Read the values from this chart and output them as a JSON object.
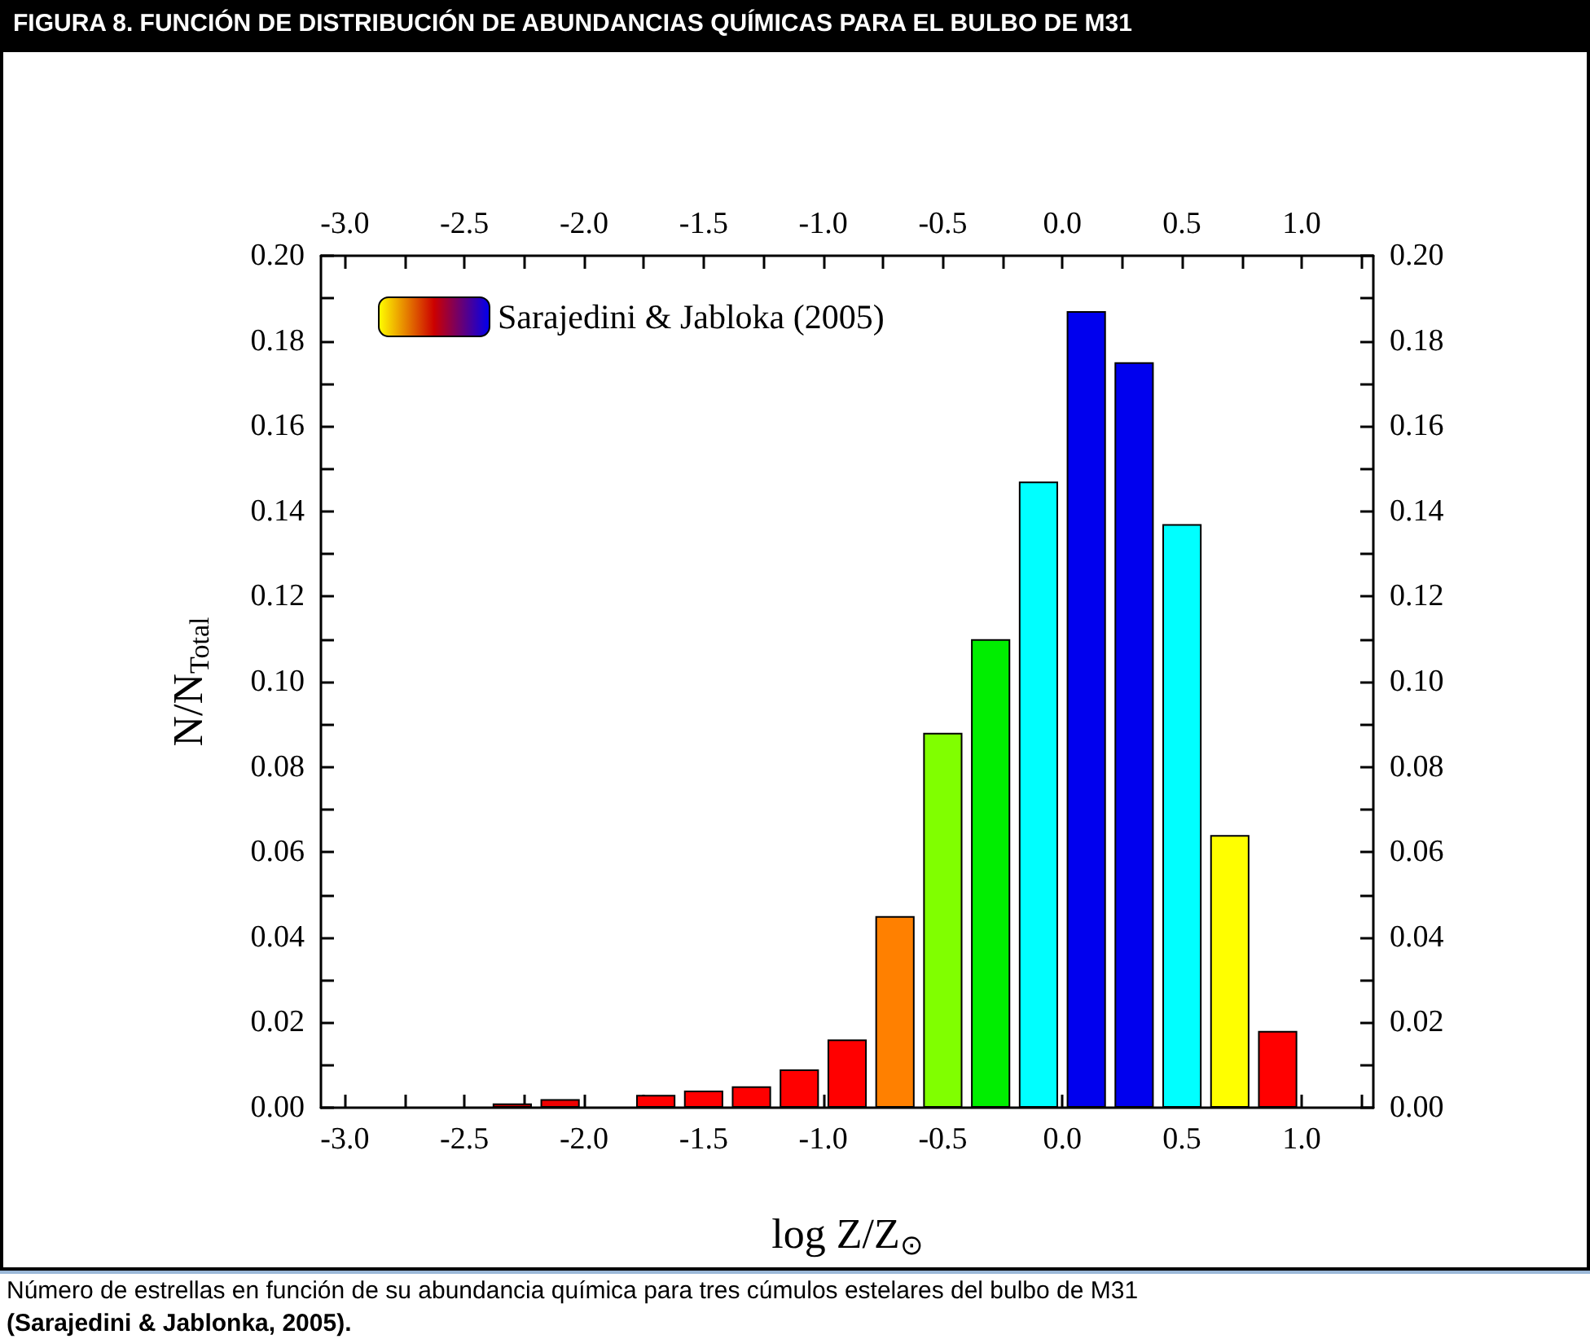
{
  "chart_data": {
    "type": "bar",
    "title": "FIGURA 8. FUNCIÓN DE DISTRIBUCIÓN DE ABUNDANCIAS QUÍMICAS PARA EL BULBO DE M31",
    "xlabel": "log Z/Z$_{⊙}$",
    "ylabel": "N/N$_{Total}$",
    "annotations": [
      "Número de estrellas en función de su abundancia química para tres cúmulos estelares del bulbo de M31",
      "(Sarajedini & Jablonka, 2005)."
    ],
    "x": [
      -2.3,
      -2.1,
      -1.7,
      -1.5,
      -1.3,
      -1.1,
      -0.9,
      -0.7,
      -0.5,
      -0.3,
      -0.1,
      0.1,
      0.3,
      0.5,
      0.7,
      0.9
    ],
    "series": [
      {
        "name": "Sarajedini & Jabloka (2005)",
        "values": [
          0.001,
          0.002,
          0.003,
          0.004,
          0.005,
          0.009,
          0.016,
          0.045,
          0.088,
          0.11,
          0.147,
          0.187,
          0.175,
          0.137,
          0.064,
          0.018
        ],
        "colors": [
          "#cc0000",
          "#ee0000",
          "#ff0000",
          "#ff0000",
          "#ff0000",
          "#ff0000",
          "#ff0000",
          "#ff8000",
          "#80ff00",
          "#00ee00",
          "#00ffff",
          "#0000ee",
          "#0000ee",
          "#00ffff",
          "#ffff00",
          "#ff0000"
        ]
      }
    ],
    "xlim": [
      -3.1,
      1.3
    ],
    "xticks": [
      {
        "value": -3.0,
        "label": "-3.0"
      },
      {
        "value": -2.75,
        "label": null
      },
      {
        "value": -2.5,
        "label": "-2.5"
      },
      {
        "value": -2.25,
        "label": null
      },
      {
        "value": -2.0,
        "label": "-2.0"
      },
      {
        "value": -1.75,
        "label": null
      },
      {
        "value": -1.5,
        "label": "-1.5"
      },
      {
        "value": -1.25,
        "label": null
      },
      {
        "value": -1.0,
        "label": "-1.0"
      },
      {
        "value": -0.75,
        "label": null
      },
      {
        "value": -0.5,
        "label": "-0.5"
      },
      {
        "value": -0.25,
        "label": null
      },
      {
        "value": 0,
        "label": "0.0"
      },
      {
        "value": 0.25,
        "label": null
      },
      {
        "value": 0.5,
        "label": "0.5"
      },
      {
        "value": 0.75,
        "label": null
      },
      {
        "value": 1.0,
        "label": "1.0"
      },
      {
        "value": 1.25,
        "label": null
      }
    ],
    "x2lim": [
      -3.1,
      1.3
    ],
    "x2ticks": [
      {
        "value": -3.0,
        "label": "-3.0"
      },
      {
        "value": -2.75,
        "label": null
      },
      {
        "value": -2.5,
        "label": "-2.5"
      },
      {
        "value": -2.25,
        "label": null
      },
      {
        "value": -2.0,
        "label": "-2.0"
      },
      {
        "value": -1.75,
        "label": null
      },
      {
        "value": -1.5,
        "label": "-1.5"
      },
      {
        "value": -1.25,
        "label": null
      },
      {
        "value": -1.0,
        "label": "-1.0"
      },
      {
        "value": -0.75,
        "label": null
      },
      {
        "value": -0.5,
        "label": "-0.5"
      },
      {
        "value": -0.25,
        "label": null
      },
      {
        "value": 0,
        "label": "0.0"
      },
      {
        "value": 0.25,
        "label": null
      },
      {
        "value": 0.5,
        "label": "0.5"
      },
      {
        "value": 0.75,
        "label": null
      },
      {
        "value": 1.0,
        "label": "1.0"
      },
      {
        "value": 1.25,
        "label": null
      }
    ],
    "ylim": [
      0,
      0.2
    ],
    "yticks": [
      {
        "value": 0,
        "label": "0.00"
      },
      {
        "value": 0.01,
        "label": null
      },
      {
        "value": 0.02,
        "label": "0.02"
      },
      {
        "value": 0.03,
        "label": null
      },
      {
        "value": 0.04,
        "label": "0.04"
      },
      {
        "value": 0.05,
        "label": null
      },
      {
        "value": 0.06,
        "label": "0.06"
      },
      {
        "value": 0.07,
        "label": null
      },
      {
        "value": 0.08,
        "label": "0.08"
      },
      {
        "value": 0.09,
        "label": null
      },
      {
        "value": 0.1,
        "label": "0.10"
      },
      {
        "value": 0.11,
        "label": null
      },
      {
        "value": 0.12,
        "label": "0.12"
      },
      {
        "value": 0.13,
        "label": null
      },
      {
        "value": 0.14,
        "label": "0.14"
      },
      {
        "value": 0.15,
        "label": null
      },
      {
        "value": 0.16,
        "label": "0.16"
      },
      {
        "value": 0.17,
        "label": null
      },
      {
        "value": 0.18,
        "label": "0.18"
      },
      {
        "value": 0.19,
        "label": null
      },
      {
        "value": 0.2,
        "label": "0.20"
      }
    ],
    "y2lim": [
      0,
      0.2
    ],
    "y2ticks": [
      {
        "value": 0,
        "label": "0.00"
      },
      {
        "value": 0.01,
        "label": null
      },
      {
        "value": 0.02,
        "label": "0.02"
      },
      {
        "value": 0.03,
        "label": null
      },
      {
        "value": 0.04,
        "label": "0.04"
      },
      {
        "value": 0.05,
        "label": null
      },
      {
        "value": 0.06,
        "label": "0.06"
      },
      {
        "value": 0.07,
        "label": null
      },
      {
        "value": 0.08,
        "label": "0.08"
      },
      {
        "value": 0.09,
        "label": null
      },
      {
        "value": 0.1,
        "label": "0.10"
      },
      {
        "value": 0.11,
        "label": null
      },
      {
        "value": 0.12,
        "label": "0.12"
      },
      {
        "value": 0.13,
        "label": null
      },
      {
        "value": 0.14,
        "label": "0.14"
      },
      {
        "value": 0.15,
        "label": null
      },
      {
        "value": 0.16,
        "label": "0.16"
      },
      {
        "value": 0.17,
        "label": null
      },
      {
        "value": 0.18,
        "label": "0.18"
      },
      {
        "value": 0.19,
        "label": null
      },
      {
        "value": 0.2,
        "label": "0.20"
      }
    ],
    "grid": false,
    "legend": "top left"
  }
}
